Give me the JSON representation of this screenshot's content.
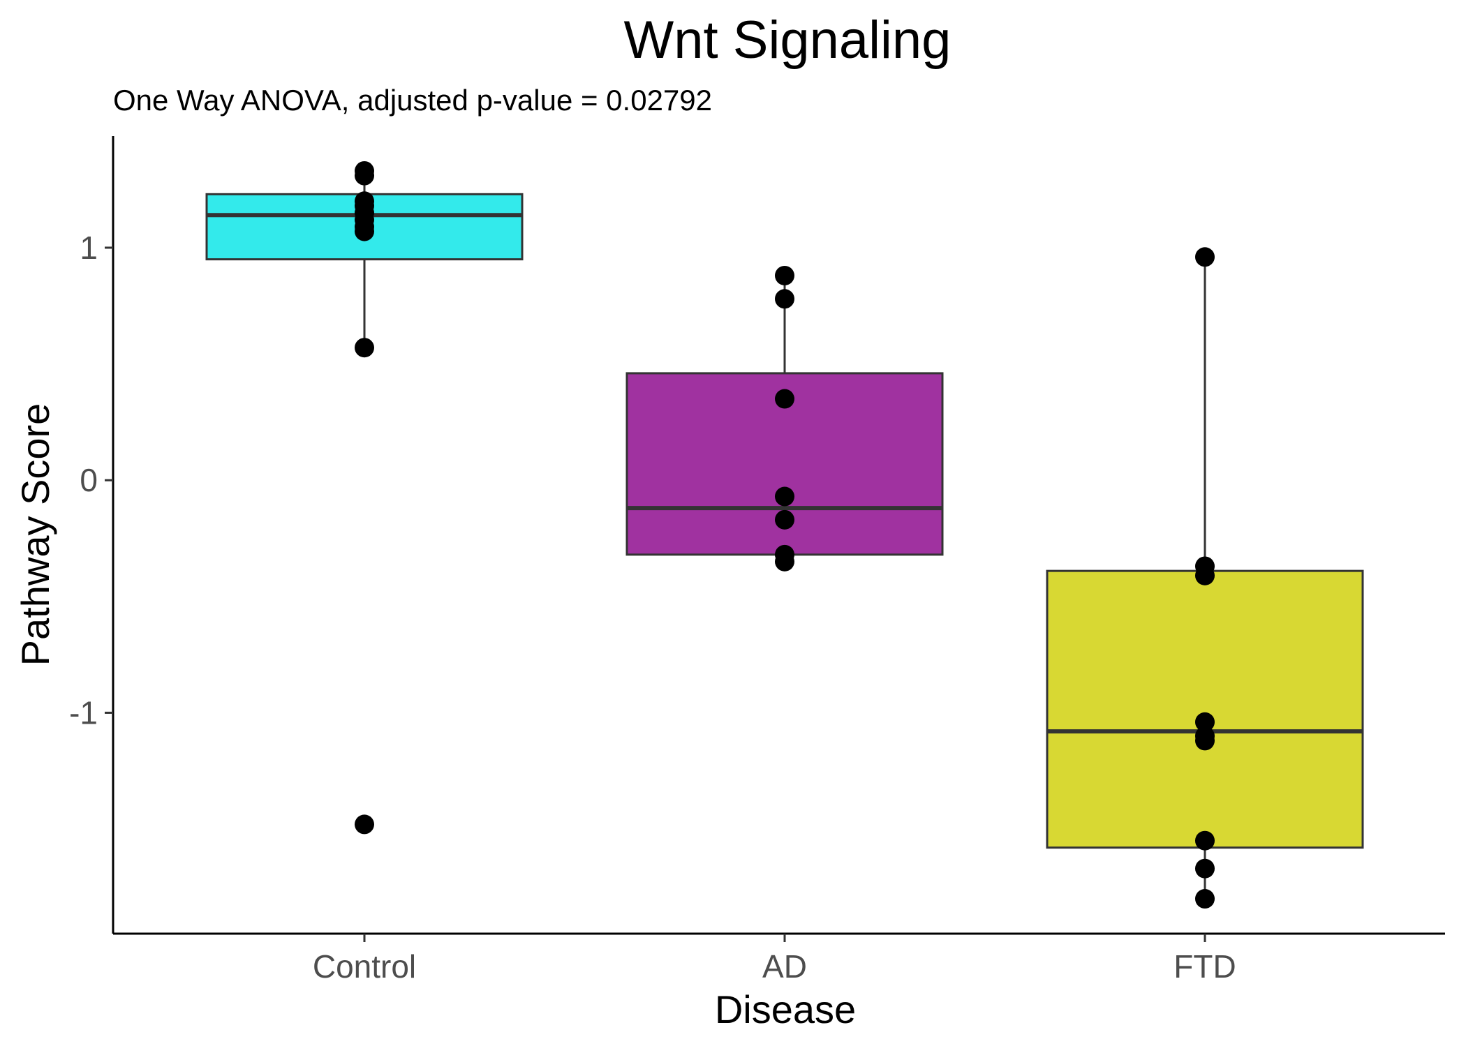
{
  "chart_data": {
    "type": "boxplot",
    "title": "Wnt Signaling",
    "subtitle": "One Way ANOVA, adjusted p-value = 0.02792",
    "xlabel": "Disease",
    "ylabel": "Pathway Score",
    "ylim": [
      -1.95,
      1.48
    ],
    "yticks": [
      1,
      0,
      -1
    ],
    "ytick_labels": [
      "1",
      "0",
      "-1"
    ],
    "categories": [
      "Control",
      "AD",
      "FTD"
    ],
    "groups": [
      {
        "name": "Control",
        "color": "#33EAEB",
        "q1": 0.95,
        "median": 1.14,
        "q3": 1.23,
        "whisker_low": 0.57,
        "whisker_high": 1.33,
        "points": [
          1.33,
          1.31,
          1.2,
          1.18,
          1.15,
          1.12,
          1.09,
          1.07,
          0.57,
          -1.48
        ]
      },
      {
        "name": "AD",
        "color": "#A032A0",
        "q1": -0.32,
        "median": -0.12,
        "q3": 0.46,
        "whisker_low": -0.35,
        "whisker_high": 0.88,
        "points": [
          0.88,
          0.78,
          0.35,
          -0.07,
          -0.17,
          -0.32,
          -0.35
        ]
      },
      {
        "name": "FTD",
        "color": "#D8D833",
        "q1": -1.58,
        "median": -1.08,
        "q3": -0.39,
        "whisker_low": -1.8,
        "whisker_high": 0.96,
        "points": [
          0.96,
          -0.37,
          -0.41,
          -1.04,
          -1.1,
          -1.12,
          -1.55,
          -1.67,
          -1.8
        ]
      }
    ]
  }
}
